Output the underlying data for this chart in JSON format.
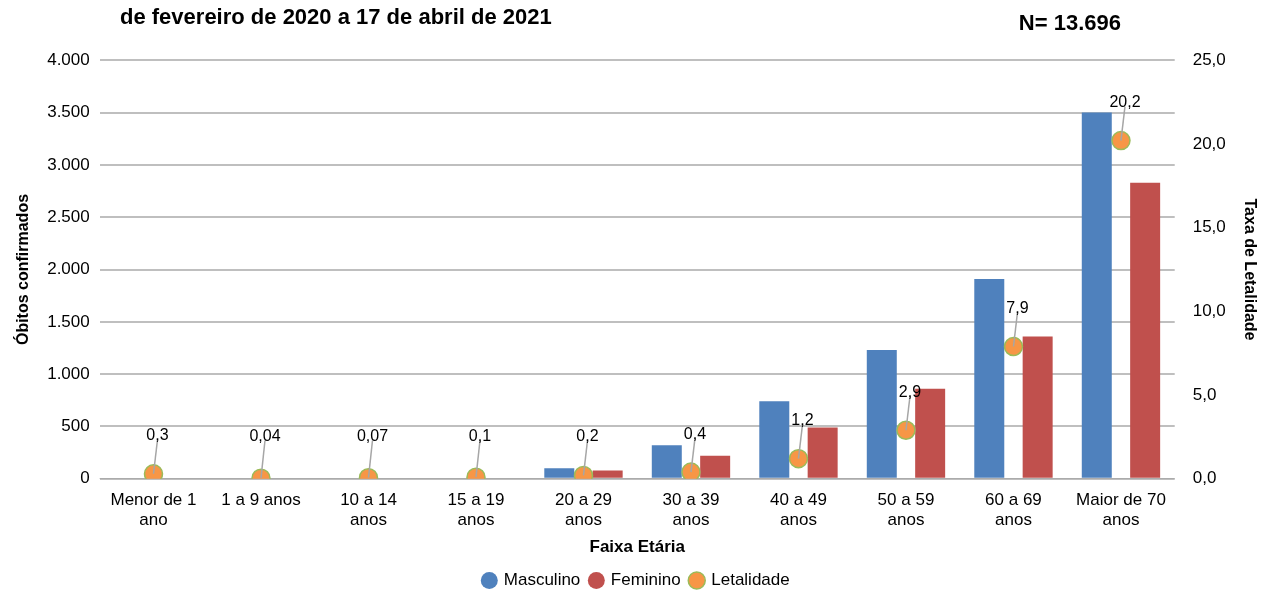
{
  "chart_data": {
    "type": "bar",
    "title": "de fevereiro de 2020 a 17 de abril de 2021",
    "annotations": [
      "N= 13.696"
    ],
    "xlabel": "Faixa Etária",
    "ylabel": "Óbitos confirmados",
    "y2label": "Taxa de Letalidade",
    "categories": [
      "Menor de 1 ano",
      "1 a 9 anos",
      "10 a 14 anos",
      "15 a 19 anos",
      "20 a 29 anos",
      "30 a 39 anos",
      "40 a 49 anos",
      "50 a 59 anos",
      "60 a 69 anos",
      "Maior de 70 anos"
    ],
    "series": [
      {
        "name": "Masculino",
        "color": "#4f81bd",
        "values": [
          0,
          0,
          0,
          0,
          100,
          320,
          740,
          1230,
          1910,
          3500
        ]
      },
      {
        "name": "Feminino",
        "color": "#c0504d",
        "values": [
          0,
          0,
          0,
          0,
          80,
          220,
          490,
          860,
          1360,
          2830
        ]
      },
      {
        "name": "Letalidade",
        "type": "scatter",
        "axis": "y2",
        "color": "#f79646",
        "marker": "circle",
        "values": [
          0.3,
          0.04,
          0.07,
          0.1,
          0.2,
          0.4,
          1.2,
          2.9,
          7.9,
          20.2
        ],
        "value_labels": [
          "0,3",
          "0,04",
          "0,07",
          "0,1",
          "0,2",
          "0,4",
          "1,2",
          "2,9",
          "7,9",
          "20,2"
        ]
      }
    ],
    "ylim": [
      0,
      4000
    ],
    "yticks": [
      {
        "value": 0,
        "label": "0"
      },
      {
        "value": 500,
        "label": "500"
      },
      {
        "value": 1000,
        "label": "1.000"
      },
      {
        "value": 1500,
        "label": "1.500"
      },
      {
        "value": 2000,
        "label": "2.000"
      },
      {
        "value": 2500,
        "label": "2.500"
      },
      {
        "value": 3000,
        "label": "3.000"
      },
      {
        "value": 3500,
        "label": "3.500"
      },
      {
        "value": 4000,
        "label": "4.000"
      }
    ],
    "y2lim": [
      0,
      25
    ],
    "y2ticks": [
      {
        "value": 0,
        "label": "0,0"
      },
      {
        "value": 5,
        "label": "5,0"
      },
      {
        "value": 10,
        "label": "10,0"
      },
      {
        "value": 15,
        "label": "15,0"
      },
      {
        "value": 20,
        "label": "20,0"
      },
      {
        "value": 25,
        "label": "25,0"
      }
    ],
    "grid": "y",
    "legend": "bottom"
  }
}
